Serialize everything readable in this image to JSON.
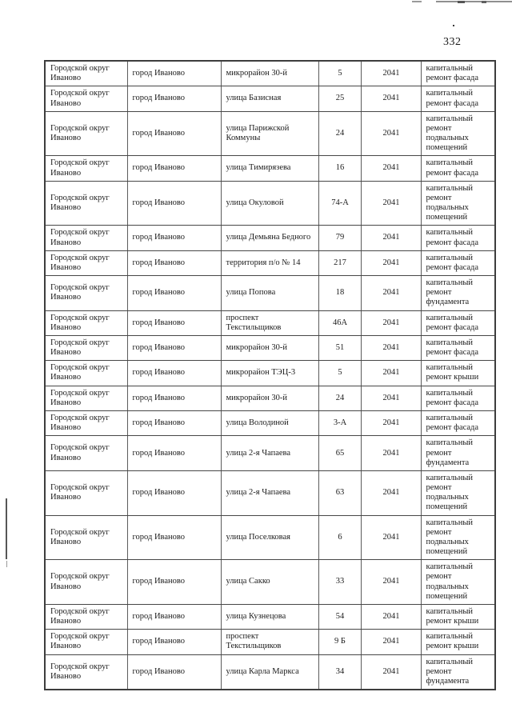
{
  "page_number": "332",
  "table": {
    "columns": [
      "municipality",
      "settlement",
      "street",
      "house",
      "year",
      "work"
    ],
    "rows": [
      {
        "municipality": "Городской округ Иваново",
        "settlement": "город Иваново",
        "street": "микрорайон 30-й",
        "house": "5",
        "year": "2041",
        "work": "капитальный ремонт фасада"
      },
      {
        "municipality": "Городской округ Иваново",
        "settlement": "город Иваново",
        "street": "улица Базисная",
        "house": "25",
        "year": "2041",
        "work": "капитальный ремонт фасада"
      },
      {
        "municipality": "Городской округ Иваново",
        "settlement": "город Иваново",
        "street": "улица Парижской Коммуны",
        "house": "24",
        "year": "2041",
        "work": "капитальный ремонт подвальных помещений"
      },
      {
        "municipality": "Городской округ Иваново",
        "settlement": "город Иваново",
        "street": "улица Тимирязева",
        "house": "16",
        "year": "2041",
        "work": "капитальный ремонт фасада"
      },
      {
        "municipality": "Городской округ Иваново",
        "settlement": "город Иваново",
        "street": "улица Окуловой",
        "house": "74-А",
        "year": "2041",
        "work": "капитальный ремонт подвальных помещений"
      },
      {
        "municipality": "Городской округ Иваново",
        "settlement": "город Иваново",
        "street": "улица Демьяна Бедного",
        "house": "79",
        "year": "2041",
        "work": "капитальный ремонт фасада"
      },
      {
        "municipality": "Городской округ Иваново",
        "settlement": "город Иваново",
        "street": "территория п/о № 14",
        "house": "217",
        "year": "2041",
        "work": "капитальный ремонт фасада"
      },
      {
        "municipality": "Городской округ Иваново",
        "settlement": "город Иваново",
        "street": "улица Попова",
        "house": "18",
        "year": "2041",
        "work": "капитальный ремонт фундамента"
      },
      {
        "municipality": "Городской округ Иваново",
        "settlement": "город Иваново",
        "street": "проспект Текстильщиков",
        "house": "46А",
        "year": "2041",
        "work": "капитальный ремонт фасада"
      },
      {
        "municipality": "Городской округ Иваново",
        "settlement": "город Иваново",
        "street": "микрорайон 30-й",
        "house": "51",
        "year": "2041",
        "work": "капитальный ремонт фасада"
      },
      {
        "municipality": "Городской округ Иваново",
        "settlement": "город Иваново",
        "street": "микрорайон ТЭЦ-3",
        "house": "5",
        "year": "2041",
        "work": "капитальный ремонт крыши"
      },
      {
        "municipality": "Городской округ Иваново",
        "settlement": "город Иваново",
        "street": "микрорайон 30-й",
        "house": "24",
        "year": "2041",
        "work": "капитальный ремонт фасада"
      },
      {
        "municipality": "Городской округ Иваново",
        "settlement": "город Иваново",
        "street": "улица Володиной",
        "house": "3-А",
        "year": "2041",
        "work": "капитальный ремонт фасада"
      },
      {
        "municipality": "Городской округ Иваново",
        "settlement": "город Иваново",
        "street": "улица 2-я Чапаева",
        "house": "65",
        "year": "2041",
        "work": "капитальный ремонт фундамента"
      },
      {
        "municipality": "Городской округ Иваново",
        "settlement": "город Иваново",
        "street": "улица 2-я Чапаева",
        "house": "63",
        "year": "2041",
        "work": "капитальный ремонт подвальных помещений"
      },
      {
        "municipality": "Городской округ Иваново",
        "settlement": "город Иваново",
        "street": "улица Поселковая",
        "house": "6",
        "year": "2041",
        "work": "капитальный ремонт подвальных помещений"
      },
      {
        "municipality": "Городской округ Иваново",
        "settlement": "город Иваново",
        "street": "улица Сакко",
        "house": "33",
        "year": "2041",
        "work": "капитальный ремонт подвальных помещений"
      },
      {
        "municipality": "Городской округ Иваново",
        "settlement": "город Иваново",
        "street": "улица Кузнецова",
        "house": "54",
        "year": "2041",
        "work": "капитальный ремонт крыши"
      },
      {
        "municipality": "Городской округ Иваново",
        "settlement": "город Иваново",
        "street": "проспект Текстильщиков",
        "house": "9 Б",
        "year": "2041",
        "work": "капитальный ремонт крыши"
      },
      {
        "municipality": "Городской округ Иваново",
        "settlement": "город Иваново",
        "street": "улица Карла Маркса",
        "house": "34",
        "year": "2041",
        "work": "капитальный ремонт фундамента"
      }
    ]
  }
}
